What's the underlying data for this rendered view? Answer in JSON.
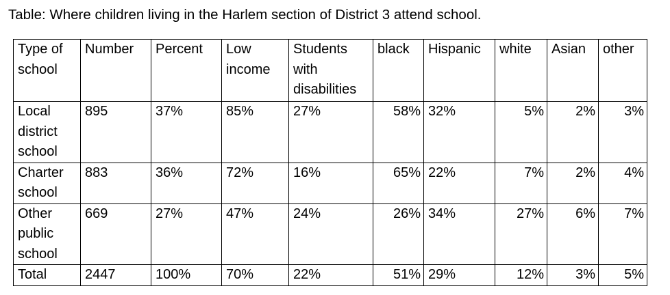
{
  "caption": "Table: Where children living in the Harlem section of District 3 attend school.",
  "headers": [
    "Type of school",
    "Number",
    "Percent",
    "Low income",
    "Students with disabilities",
    "black",
    "Hispanic",
    "white",
    "Asian",
    "other"
  ],
  "rows": [
    [
      "Local district school",
      "895",
      "37%",
      "85%",
      "27%",
      "58%",
      "32%",
      "5%",
      "2%",
      "3%"
    ],
    [
      "Charter school",
      "883",
      "36%",
      "72%",
      "16%",
      "65%",
      "22%",
      "7%",
      "2%",
      "4%"
    ],
    [
      "Other public school",
      "669",
      "27%",
      "47%",
      "24%",
      "26%",
      "34%",
      "27%",
      "6%",
      "7%"
    ],
    [
      "Total",
      "2447",
      "100%",
      "70%",
      "22%",
      "51%",
      "29%",
      "12%",
      "3%",
      "5%"
    ]
  ]
}
